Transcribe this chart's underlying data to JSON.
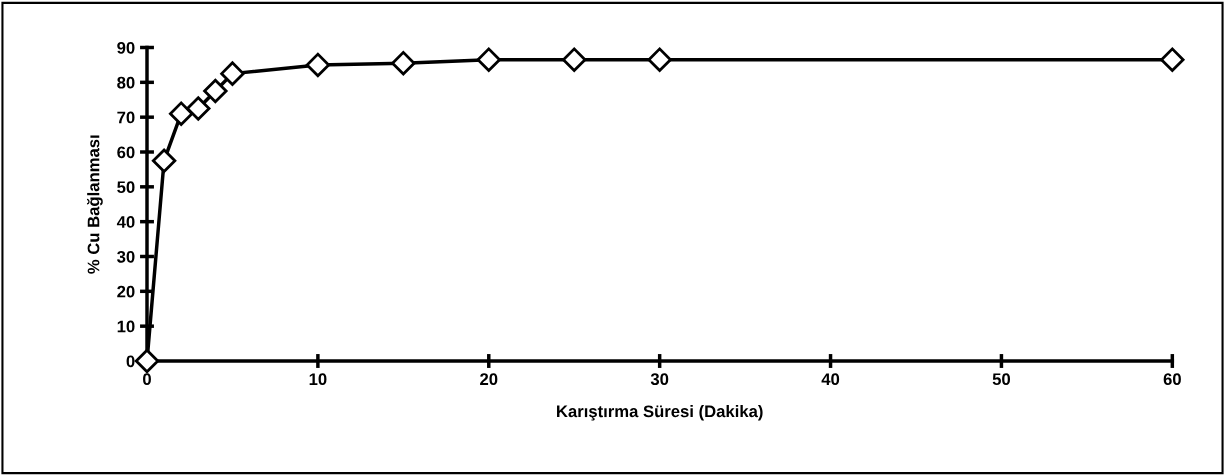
{
  "chart_data": {
    "type": "line",
    "xlabel": "Karıştırma Süresi (Dakika)",
    "ylabel": "% Cu Bağlanması",
    "x": [
      0,
      1,
      2,
      3,
      4,
      5,
      10,
      15,
      20,
      25,
      30,
      60
    ],
    "series": [
      {
        "color": "#000000",
        "values": [
          0,
          57.5,
          71,
          72.5,
          77.5,
          82.5,
          85,
          85.5,
          86.5,
          86.5,
          86.5,
          86.5
        ]
      }
    ],
    "xlim": [
      0,
      60
    ],
    "xticks": [
      0,
      10,
      20,
      30,
      40,
      50,
      60
    ],
    "ylim": [
      0,
      90
    ],
    "yticks": [
      0,
      10,
      20,
      30,
      40,
      50,
      60,
      70,
      80,
      90
    ],
    "marker": "diamond",
    "line_style": "solid",
    "grid": false,
    "legend": false
  }
}
